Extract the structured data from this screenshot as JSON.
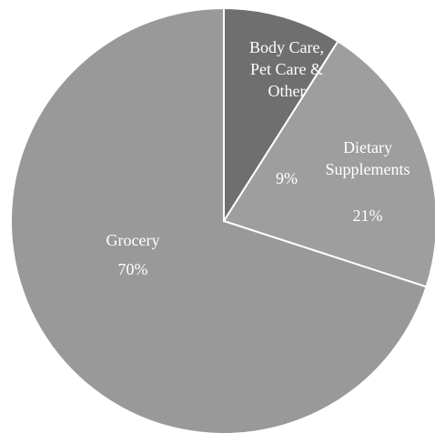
{
  "chart_data": {
    "type": "pie",
    "slices": [
      {
        "label_lines": [
          "Body Care,",
          "Pet Care &",
          "Other"
        ],
        "value_label": "9%",
        "value": 9,
        "color": "#6f6f6f"
      },
      {
        "label_lines": [
          "Dietary",
          "Supplements"
        ],
        "value_label": "21%",
        "value": 21,
        "color": "#9e9e9e"
      },
      {
        "label_lines": [
          "Grocery"
        ],
        "value_label": "70%",
        "value": 70,
        "color": "#999999"
      }
    ],
    "start_angle_deg": 0,
    "direction": "clockwise",
    "legend": "none",
    "title": ""
  }
}
